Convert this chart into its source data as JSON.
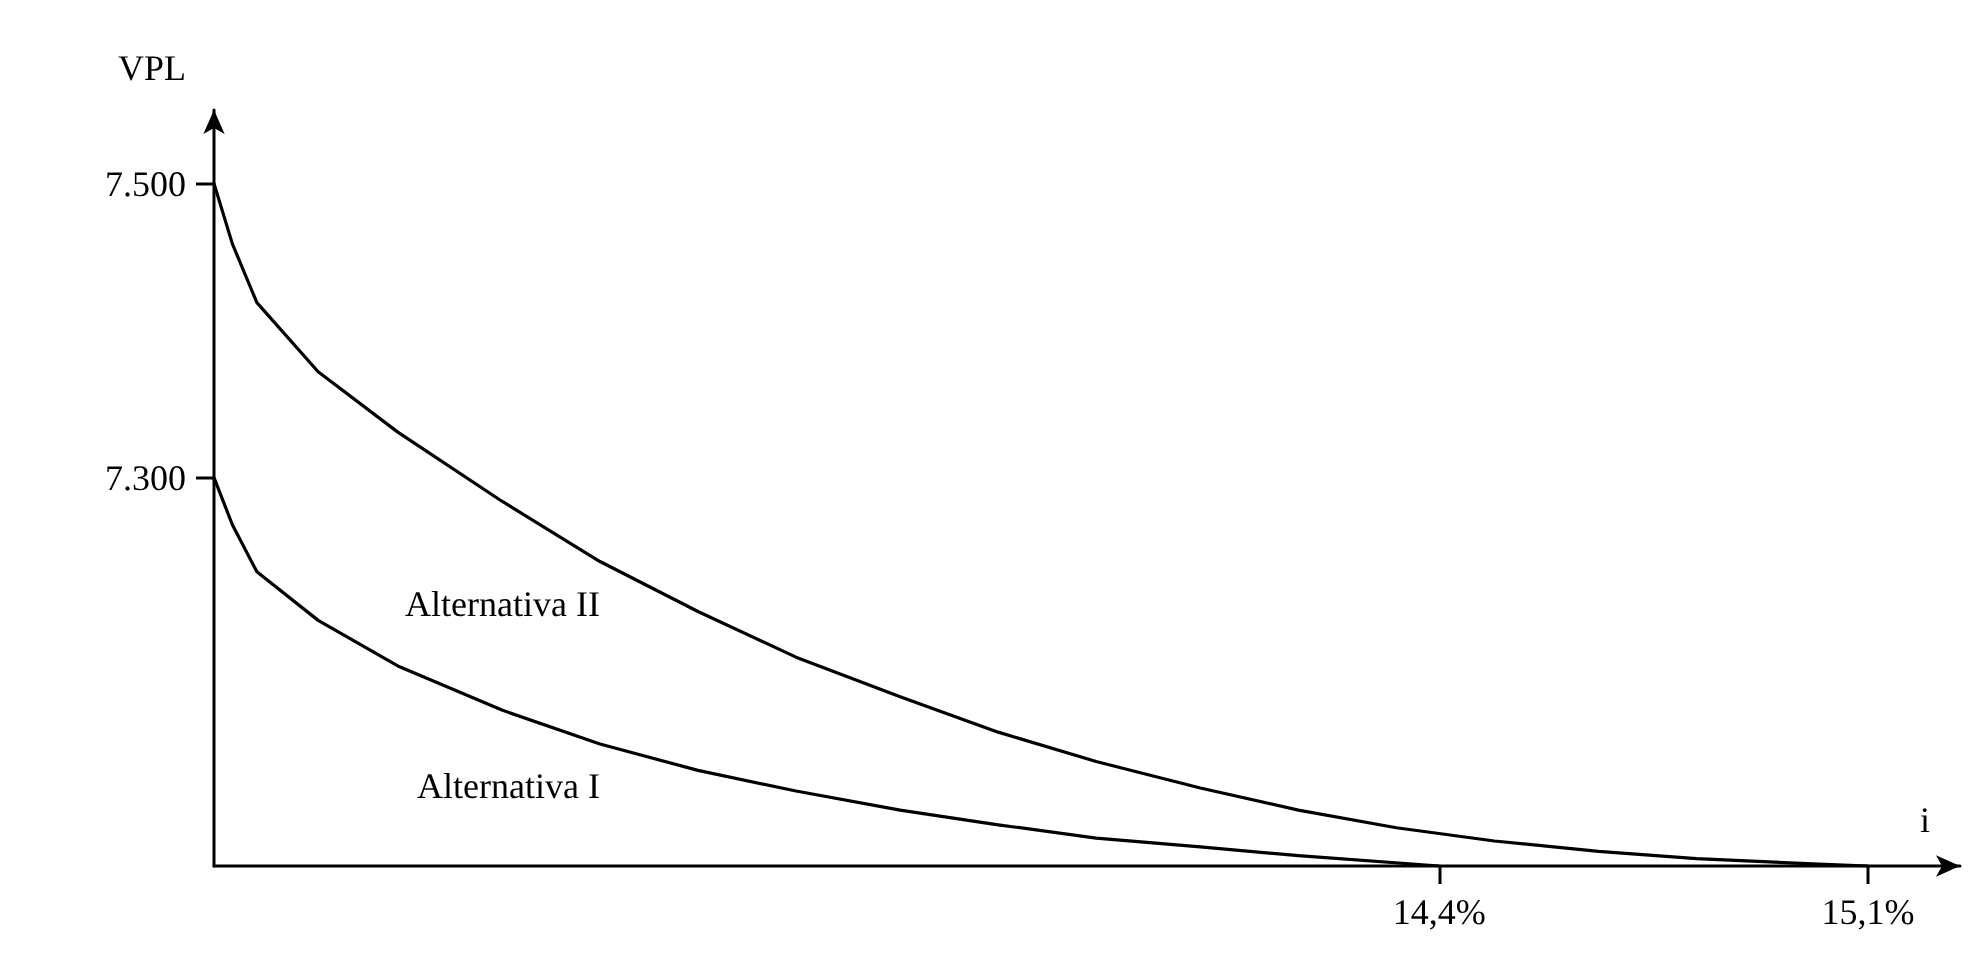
{
  "chart_data": {
    "type": "line",
    "xlabel": "i",
    "ylabel": "VPL",
    "xlim": [
      12.4,
      15.25
    ],
    "xticks": [
      {
        "value": 14.4,
        "label": "14,4%"
      },
      {
        "value": 15.1,
        "label": "15,1%"
      }
    ],
    "ylim": [
      7036,
      7550
    ],
    "yticks": [
      {
        "value": 7300,
        "label": "7.300"
      },
      {
        "value": 7500,
        "label": "7.500"
      }
    ],
    "grid": false,
    "legend": false,
    "marker": "none",
    "line_style": "solid",
    "series": [
      {
        "name": "Alternativa I",
        "color": "#000000",
        "x": [
          12.4,
          12.43,
          12.47,
          12.57,
          12.7,
          12.87,
          13.03,
          13.19,
          13.35,
          13.52,
          13.68,
          13.84,
          14.01,
          14.17,
          14.4
        ],
        "values": [
          7300,
          7268,
          7236,
          7203,
          7172,
          7142,
          7119,
          7101,
          7087,
          7074,
          7064,
          7055,
          7049,
          7043,
          7036
        ]
      },
      {
        "name": "Alternativa II",
        "color": "#000000",
        "x": [
          12.4,
          12.43,
          12.47,
          12.57,
          12.7,
          12.87,
          13.03,
          13.19,
          13.35,
          13.52,
          13.68,
          13.84,
          14.01,
          14.17,
          14.33,
          14.49,
          14.66,
          14.82,
          14.98,
          15.1
        ],
        "values": [
          7500,
          7459,
          7419,
          7372,
          7331,
          7284,
          7243,
          7209,
          7178,
          7151,
          7127,
          7107,
          7089,
          7074,
          7062,
          7053,
          7046,
          7041,
          7038,
          7036
        ]
      }
    ]
  }
}
